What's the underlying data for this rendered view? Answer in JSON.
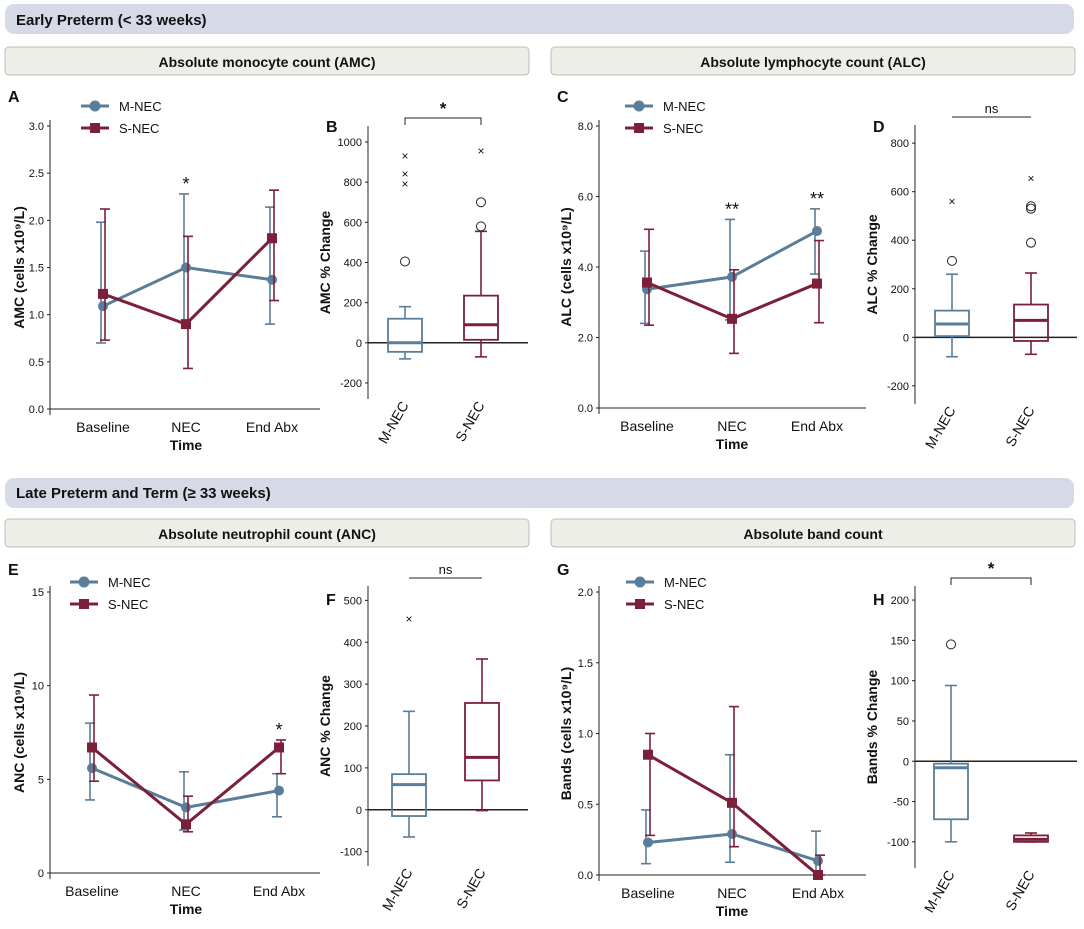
{
  "sections": [
    {
      "title": "Early Preterm (< 33 weeks)"
    },
    {
      "title": "Late Preterm and Term (≥ 33 weeks)"
    }
  ],
  "subheaders": [
    "Absolute monocyte count (AMC)",
    "Absolute lymphocyte count (ALC)",
    "Absolute neutrophil count (ANC)",
    "Absolute band count"
  ],
  "colors": {
    "m_nec": "#5a7d9a",
    "s_nec": "#7b1f3a",
    "header_bg": "#d5dae6",
    "sub_bg": "#eeeee8"
  },
  "chart_data": [
    {
      "panel": "A",
      "type": "line",
      "xlabel": "Time",
      "ylabel": "AMC (cells x10⁹/L)",
      "categories": [
        "Baseline",
        "NEC",
        "End Abx"
      ],
      "ylim": [
        0,
        3
      ],
      "yticks": [
        "0.0",
        "0.5",
        "1.0",
        "1.5",
        "2.0",
        "2.5",
        "3.0"
      ],
      "ytick_values": [
        0,
        0.5,
        1,
        1.5,
        2,
        2.5,
        3
      ],
      "legend": [
        "M-NEC",
        "S-NEC"
      ],
      "series": [
        {
          "name": "M-NEC",
          "values": [
            1.09,
            1.5,
            1.37
          ],
          "lower": [
            0.7,
            0.92,
            0.9
          ],
          "upper": [
            1.98,
            2.28,
            2.14
          ]
        },
        {
          "name": "S-NEC",
          "values": [
            1.22,
            0.9,
            1.81
          ],
          "lower": [
            0.73,
            0.43,
            1.15
          ],
          "upper": [
            2.12,
            1.83,
            2.32
          ]
        }
      ],
      "annotations": [
        {
          "label": "*",
          "category": 1
        }
      ]
    },
    {
      "panel": "B",
      "type": "box",
      "ylabel": "AMC % Change",
      "categories": [
        "M-NEC",
        "S-NEC"
      ],
      "ylim": [
        -250,
        1050
      ],
      "yticks": [
        "-200",
        "0",
        "200",
        "400",
        "600",
        "800",
        "1000"
      ],
      "ytick_values": [
        -200,
        0,
        200,
        400,
        600,
        800,
        1000
      ],
      "boxes": [
        {
          "name": "M-NEC",
          "min": -80,
          "q1": -45,
          "median": 0,
          "q3": 120,
          "max": 180,
          "outliers_o": [
            405
          ],
          "outliers_x": [
            790,
            840,
            930
          ]
        },
        {
          "name": "S-NEC",
          "min": -70,
          "q1": 15,
          "median": 90,
          "q3": 235,
          "max": 555,
          "outliers_o": [
            580,
            700
          ],
          "outliers_x": [
            955
          ]
        }
      ],
      "significance": "*"
    },
    {
      "panel": "C",
      "type": "line",
      "xlabel": "Time",
      "ylabel": "ALC (cells x10⁹/L)",
      "categories": [
        "Baseline",
        "NEC",
        "End Abx"
      ],
      "ylim": [
        0,
        8
      ],
      "yticks": [
        "0.0",
        "2.0",
        "4.0",
        "6.0",
        "8.0"
      ],
      "ytick_values": [
        0,
        2,
        4,
        6,
        8
      ],
      "legend": [
        "M-NEC",
        "S-NEC"
      ],
      "series": [
        {
          "name": "M-NEC",
          "values": [
            3.37,
            3.72,
            5.02
          ],
          "lower": [
            2.4,
            2.5,
            3.8
          ],
          "upper": [
            4.45,
            5.35,
            5.65
          ]
        },
        {
          "name": "S-NEC",
          "values": [
            3.56,
            2.53,
            3.53
          ],
          "lower": [
            2.35,
            1.55,
            2.42
          ],
          "upper": [
            5.07,
            3.92,
            4.75
          ]
        }
      ],
      "annotations": [
        {
          "label": "**",
          "category": 1
        },
        {
          "label": "**",
          "category": 2
        }
      ]
    },
    {
      "panel": "D",
      "type": "box",
      "ylabel": "ALC % Change",
      "categories": [
        "M-NEC",
        "S-NEC"
      ],
      "ylim": [
        -250,
        850
      ],
      "yticks": [
        "-200",
        "0",
        "200",
        "400",
        "600",
        "800"
      ],
      "ytick_values": [
        -200,
        0,
        200,
        400,
        600,
        800
      ],
      "boxes": [
        {
          "name": "M-NEC",
          "min": -80,
          "q1": 5,
          "median": 55,
          "q3": 110,
          "max": 260,
          "outliers_o": [
            315
          ],
          "outliers_x": [
            560
          ]
        },
        {
          "name": "S-NEC",
          "min": -70,
          "q1": -15,
          "median": 70,
          "q3": 135,
          "max": 265,
          "outliers_o": [
            390,
            530,
            540
          ],
          "outliers_x": [
            655
          ]
        }
      ],
      "significance": "ns"
    },
    {
      "panel": "E",
      "type": "line",
      "xlabel": "Time",
      "ylabel": "ANC (cells x10⁹/L)",
      "categories": [
        "Baseline",
        "NEC",
        "End Abx"
      ],
      "ylim": [
        0,
        15
      ],
      "yticks": [
        "0",
        "5",
        "10",
        "15"
      ],
      "ytick_values": [
        0,
        5,
        10,
        15
      ],
      "legend": [
        "M-NEC",
        "S-NEC"
      ],
      "series": [
        {
          "name": "M-NEC",
          "values": [
            5.6,
            3.5,
            4.4
          ],
          "lower": [
            3.9,
            2.3,
            3.0
          ],
          "upper": [
            8.0,
            5.4,
            5.3
          ]
        },
        {
          "name": "S-NEC",
          "values": [
            6.7,
            2.6,
            6.7
          ],
          "lower": [
            4.9,
            2.2,
            5.3
          ],
          "upper": [
            9.5,
            4.1,
            7.1
          ]
        }
      ],
      "annotations": [
        {
          "label": "*",
          "category": 2
        }
      ]
    },
    {
      "panel": "F",
      "type": "box",
      "ylabel": "ANC % Change",
      "categories": [
        "M-NEC",
        "S-NEC"
      ],
      "ylim": [
        -120,
        520
      ],
      "yticks": [
        "-100",
        "0",
        "100",
        "200",
        "300",
        "400",
        "500"
      ],
      "ytick_values": [
        -100,
        0,
        100,
        200,
        300,
        400,
        500
      ],
      "boxes": [
        {
          "name": "M-NEC",
          "min": -65,
          "q1": -15,
          "median": 60,
          "q3": 85,
          "max": 235,
          "outliers_o": [],
          "outliers_x": [
            455
          ]
        },
        {
          "name": "S-NEC",
          "min": -2,
          "q1": 70,
          "median": 125,
          "q3": 255,
          "max": 360,
          "outliers_o": [],
          "outliers_x": []
        }
      ],
      "significance": "ns"
    },
    {
      "panel": "G",
      "type": "line",
      "xlabel": "Time",
      "ylabel": "Bands (cells x10⁹/L)",
      "categories": [
        "Baseline",
        "NEC",
        "End Abx"
      ],
      "ylim": [
        0,
        2
      ],
      "yticks": [
        "0.0",
        "0.5",
        "1.0",
        "1.5",
        "2.0"
      ],
      "ytick_values": [
        0,
        0.5,
        1,
        1.5,
        2
      ],
      "legend": [
        "M-NEC",
        "S-NEC"
      ],
      "series": [
        {
          "name": "M-NEC",
          "values": [
            0.23,
            0.29,
            0.1
          ],
          "lower": [
            0.08,
            0.09,
            0.0
          ],
          "upper": [
            0.46,
            0.85,
            0.31
          ]
        },
        {
          "name": "S-NEC",
          "values": [
            0.85,
            0.51,
            0.0
          ],
          "lower": [
            0.28,
            0.2,
            0.0
          ],
          "upper": [
            1.0,
            1.19,
            0.14
          ]
        }
      ],
      "annotations": []
    },
    {
      "panel": "H",
      "type": "box",
      "ylabel": "Bands % Change",
      "categories": [
        "M-NEC",
        "S-NEC"
      ],
      "ylim": [
        -125,
        210
      ],
      "yticks": [
        "-100",
        "-50",
        "0",
        "50",
        "100",
        "150",
        "200"
      ],
      "ytick_values": [
        -100,
        -50,
        0,
        50,
        100,
        150,
        200
      ],
      "boxes": [
        {
          "name": "M-NEC",
          "min": -100,
          "q1": -72,
          "median": -8,
          "q3": -3,
          "max": 94,
          "outliers_o": [
            145
          ],
          "outliers_x": []
        },
        {
          "name": "S-NEC",
          "min": -100,
          "q1": -100,
          "median": -97,
          "q3": -92,
          "max": -89,
          "outliers_o": [],
          "outliers_x": []
        }
      ],
      "significance": "*"
    }
  ]
}
